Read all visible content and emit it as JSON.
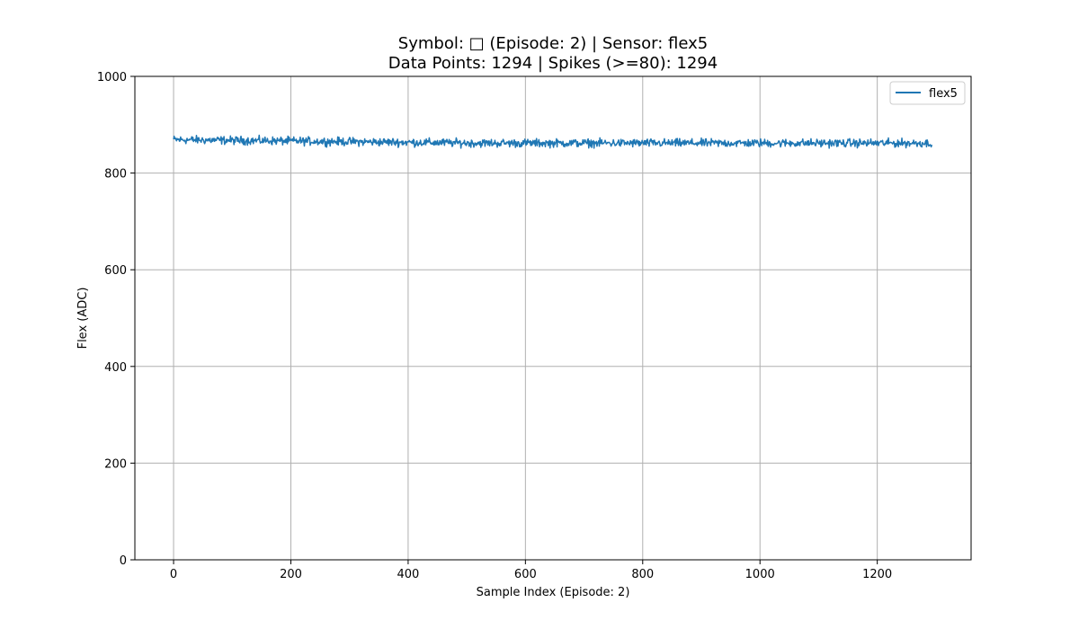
{
  "chart_data": {
    "type": "line",
    "title_line1": "Symbol: □ (Episode: 2) | Sensor: flex5",
    "title_line2": "Data Points: 1294 | Spikes (>=80): 1294",
    "xlabel": "Sample Index (Episode: 2)",
    "ylabel": "Flex (ADC)",
    "xlim": [
      -66,
      1360
    ],
    "ylim": [
      0,
      1000
    ],
    "xticks": [
      0,
      200,
      400,
      600,
      800,
      1000,
      1200
    ],
    "yticks": [
      0,
      200,
      400,
      600,
      800,
      1000
    ],
    "grid": true,
    "legend": {
      "position": "top-right",
      "entries": [
        "flex5"
      ]
    },
    "series": [
      {
        "name": "flex5",
        "color": "#1f77b4",
        "num_points": 1294,
        "mean": 864,
        "noise_amplitude": 6,
        "start_level": 869,
        "end_level": 862
      }
    ]
  }
}
